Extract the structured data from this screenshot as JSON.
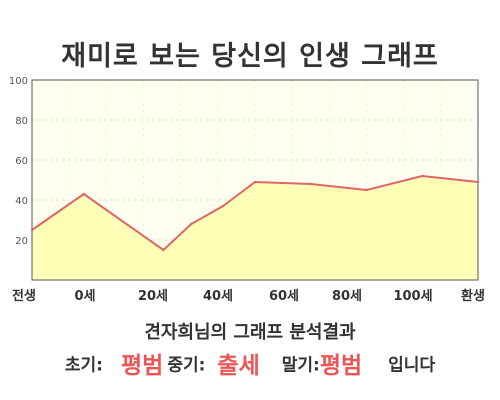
{
  "title": "재미로 보는 당신의 인생 그래프",
  "subtitle": "견자희님의 그래프 분석결과",
  "summary": {
    "early_label": "초기:",
    "early_value": "평범",
    "middle_label": "중기:",
    "middle_value": "출세",
    "late_label": "말기:",
    "late_value": "평범",
    "ending": "입니다"
  },
  "colors": {
    "line": "#e06666",
    "fill": "#ffffb8",
    "plot_bg": "#fffff0",
    "highlight_text": "#ee5555"
  },
  "chart_data": {
    "type": "area",
    "title": "재미로 보는 당신의 인생 그래프",
    "x_tick_labels": [
      "전생",
      "0세",
      "20세",
      "40세",
      "60세",
      "80세",
      "100세",
      "환생"
    ],
    "y_ticks": [
      20,
      40,
      60,
      80,
      100
    ],
    "ylim": [
      0,
      100
    ],
    "grid": true,
    "series": [
      {
        "points": [
          {
            "x": -13,
            "y": 25
          },
          {
            "x": 0,
            "y": 43
          },
          {
            "x": 20,
            "y": 15
          },
          {
            "x": 27,
            "y": 28
          },
          {
            "x": 35,
            "y": 37
          },
          {
            "x": 43,
            "y": 49
          },
          {
            "x": 57,
            "y": 48
          },
          {
            "x": 71,
            "y": 45
          },
          {
            "x": 85,
            "y": 52
          },
          {
            "x": 99,
            "y": 49
          }
        ]
      }
    ]
  }
}
